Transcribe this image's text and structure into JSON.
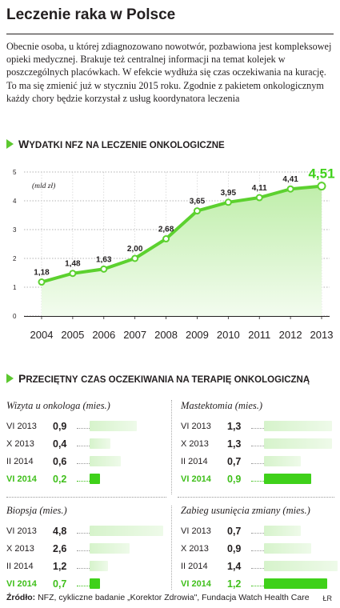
{
  "title": "Leczenie raka w Polsce",
  "intro": "Obecnie osoba, u której zdiagnozowano nowotwór, pozbawiona jest kompleksowej opieki medycznej. Brakuje też centralnej informacji na temat kolejek w poszczególnych placówkach. W efekcie wydłuża się czas oczekiwania na kurację. To ma się zmienić już w styczniu 2015 roku. Zgodnie z pakietem onkologicznym każdy chory będzie korzystał z usług koordynatora leczenia",
  "section1": {
    "first": "W",
    "rest": "ydatki NFZ",
    "tail": "na leczenie onkologiczne"
  },
  "section2": {
    "first": "P",
    "rest": "rzeciętny",
    "tail": "czas oczekiwania na terapię onkologiczną"
  },
  "colors": {
    "accent": "#3fd11a",
    "line": "#5cd12f",
    "fill_top": "#bfeeaa",
    "fill_bottom": "#f3fcef",
    "text": "#231f20"
  },
  "chart_data": [
    {
      "type": "line",
      "title": "Wydatki NFZ na leczenie onkologiczne",
      "unit_label": "(mld zł)",
      "x": [
        "2004",
        "2005",
        "2006",
        "2007",
        "2008",
        "2009",
        "2010",
        "2011",
        "2012",
        "2013"
      ],
      "values": [
        1.18,
        1.48,
        1.63,
        2.0,
        2.68,
        3.65,
        3.95,
        4.11,
        4.41,
        4.51
      ],
      "value_labels": [
        "1,18",
        "1,48",
        "1,63",
        "2,00",
        "2,68",
        "3,65",
        "3,95",
        "4,11",
        "4,41",
        "4,51"
      ],
      "yticks": [
        "0",
        "1",
        "2",
        "3",
        "4",
        "5"
      ],
      "ylim": [
        0,
        5
      ],
      "grid": true,
      "area_fill": true
    },
    {
      "type": "bar",
      "title": "Wizyta u onkologa (mies.)",
      "categories": [
        "VI 2013",
        "X 2013",
        "II 2014",
        "VI 2014"
      ],
      "values": [
        0.9,
        0.4,
        0.6,
        0.2
      ],
      "value_labels": [
        "0,9",
        "0,4",
        "0,6",
        "0,2"
      ],
      "highlight": "VI 2014"
    },
    {
      "type": "bar",
      "title": "Mastektomia (mies.)",
      "categories": [
        "VI 2013",
        "X 2013",
        "II 2014",
        "VI 2014"
      ],
      "values": [
        1.3,
        1.3,
        0.7,
        0.9
      ],
      "value_labels": [
        "1,3",
        "1,3",
        "0,7",
        "0,9"
      ],
      "highlight": "VI 2014"
    },
    {
      "type": "bar",
      "title": "Biopsja (mies.)",
      "categories": [
        "VI 2013",
        "X 2013",
        "II 2014",
        "VI 2014"
      ],
      "values": [
        4.8,
        2.6,
        1.2,
        0.7
      ],
      "value_labels": [
        "4,8",
        "2,6",
        "1,2",
        "0,7"
      ],
      "highlight": "VI 2014"
    },
    {
      "type": "bar",
      "title": "Zabieg usunięcia zmiany (mies.)",
      "categories": [
        "VI 2013",
        "X 2013",
        "II 2014",
        "VI 2014"
      ],
      "values": [
        0.7,
        0.9,
        1.4,
        1.2
      ],
      "value_labels": [
        "0,7",
        "0,9",
        "1,4",
        "1,2"
      ],
      "highlight": "VI 2014"
    }
  ],
  "footer": {
    "label": "Źródło:",
    "text": "NFZ, cykliczne badanie „Korektor Zdrowia\", Fundacja Watch Health Care",
    "credit": "ŁR"
  }
}
